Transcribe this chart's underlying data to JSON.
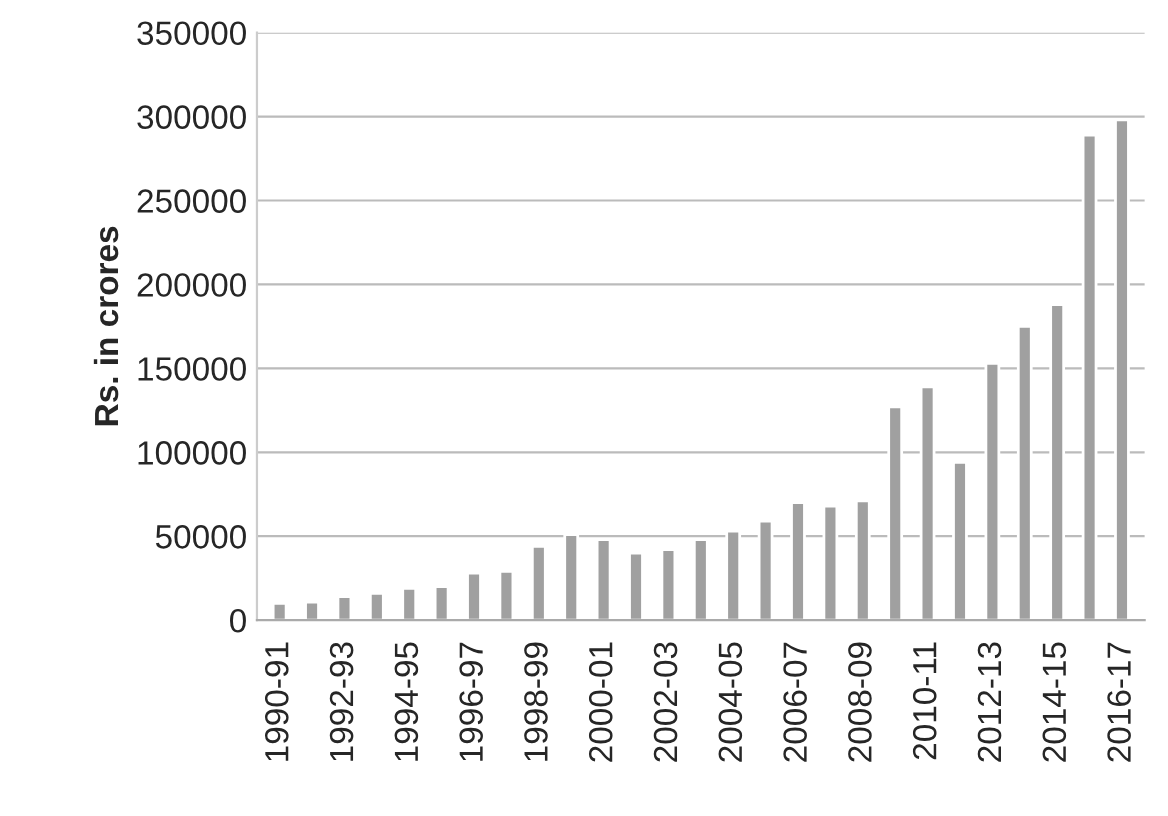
{
  "chart_data": {
    "type": "bar",
    "ylabel": "Rs. in crores",
    "categories": [
      "1990-91",
      null,
      "1992-93",
      null,
      "1994-95",
      null,
      "1996-97",
      null,
      "1998-99",
      null,
      "2000-01",
      null,
      "2002-03",
      null,
      "2004-05",
      null,
      "2006-07",
      null,
      "2008-09",
      null,
      "2010-11",
      null,
      "2012-13",
      null,
      "2014-15",
      null,
      "2016-17"
    ],
    "values": [
      10000,
      10800,
      14000,
      16000,
      19000,
      20000,
      28000,
      29000,
      44000,
      51000,
      48000,
      40000,
      42000,
      48000,
      53000,
      59000,
      70000,
      68000,
      71000,
      127000,
      139000,
      94000,
      153000,
      175000,
      188000,
      289000,
      298000
    ],
    "color": "#a0a0a0",
    "ylim": [
      0,
      350000
    ],
    "yticks": [
      0,
      50000,
      100000,
      150000,
      200000,
      250000,
      300000,
      350000
    ],
    "grid": "y"
  }
}
